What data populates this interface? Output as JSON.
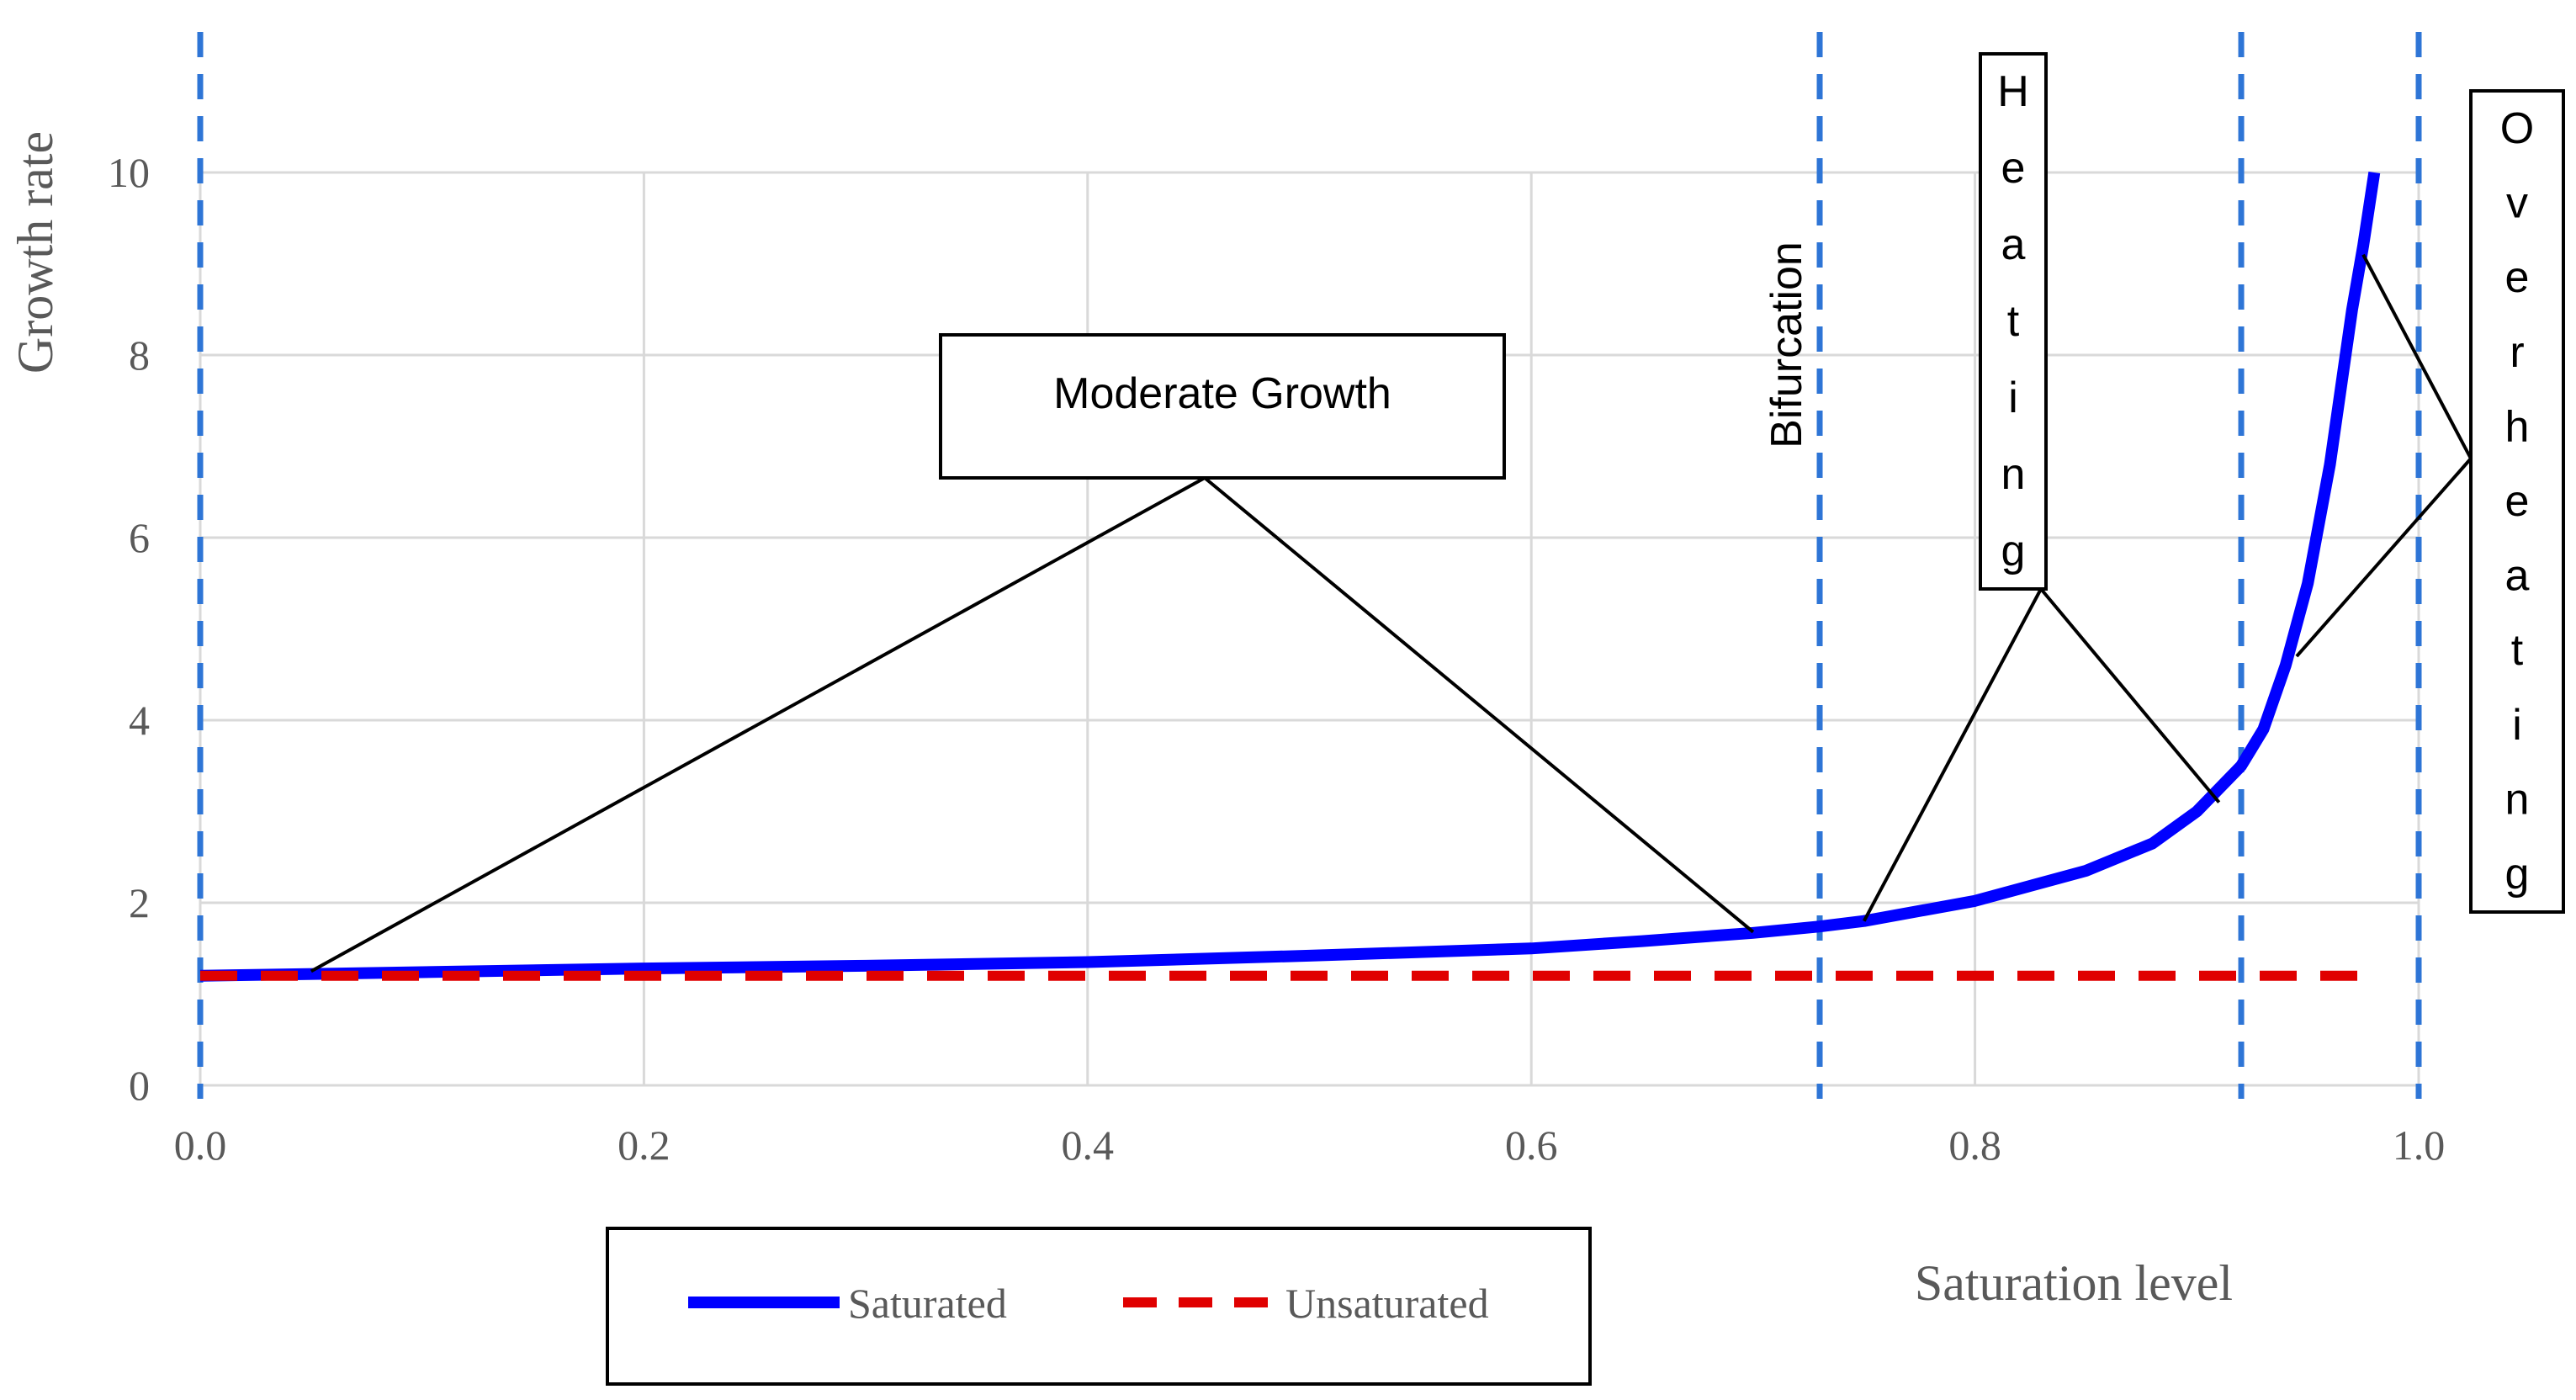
{
  "chart_data": {
    "type": "line",
    "xlabel": "Saturation level",
    "ylabel": "Growth rate",
    "xlim": [
      0,
      1
    ],
    "ylim": [
      0,
      10
    ],
    "x_ticks": [
      "0.0",
      "0.2",
      "0.4",
      "0.6",
      "0.8",
      "1.0"
    ],
    "y_ticks": [
      "0",
      "2",
      "4",
      "6",
      "8",
      "10"
    ],
    "grid": true,
    "legend_position": "bottom",
    "series": [
      {
        "name": "Saturated",
        "color": "#0000ff",
        "style": "solid",
        "x": [
          0.0,
          0.1,
          0.2,
          0.3,
          0.4,
          0.5,
          0.6,
          0.65,
          0.7,
          0.73,
          0.75,
          0.8,
          0.85,
          0.88,
          0.9,
          0.92,
          0.93,
          0.94,
          0.95,
          0.96,
          0.97,
          0.975,
          0.98
        ],
        "y": [
          1.2,
          1.24,
          1.28,
          1.31,
          1.35,
          1.42,
          1.5,
          1.58,
          1.67,
          1.74,
          1.8,
          2.02,
          2.35,
          2.65,
          3.0,
          3.5,
          3.9,
          4.6,
          5.5,
          6.8,
          8.5,
          9.2,
          10.0
        ]
      },
      {
        "name": "Unsaturated",
        "color": "#e00000",
        "style": "dashed",
        "x": [
          0.0,
          0.98
        ],
        "y": [
          1.2,
          1.2
        ]
      }
    ],
    "vertical_lines": [
      {
        "x": 0.0,
        "label": ""
      },
      {
        "x": 0.73,
        "label": "Bifurcation"
      },
      {
        "x": 0.92,
        "label": ""
      },
      {
        "x": 1.0,
        "label": ""
      }
    ],
    "annotations": [
      {
        "text": "Moderate Growth",
        "targets": [
          [
            0.05,
            1.25
          ],
          [
            0.7,
            1.68
          ]
        ]
      },
      {
        "text": "Heating",
        "targets": [
          [
            0.75,
            1.8
          ],
          [
            0.91,
            3.1
          ]
        ]
      },
      {
        "text": "Overheating",
        "targets": [
          [
            0.975,
            9.1
          ],
          [
            0.945,
            4.7
          ]
        ]
      }
    ]
  }
}
